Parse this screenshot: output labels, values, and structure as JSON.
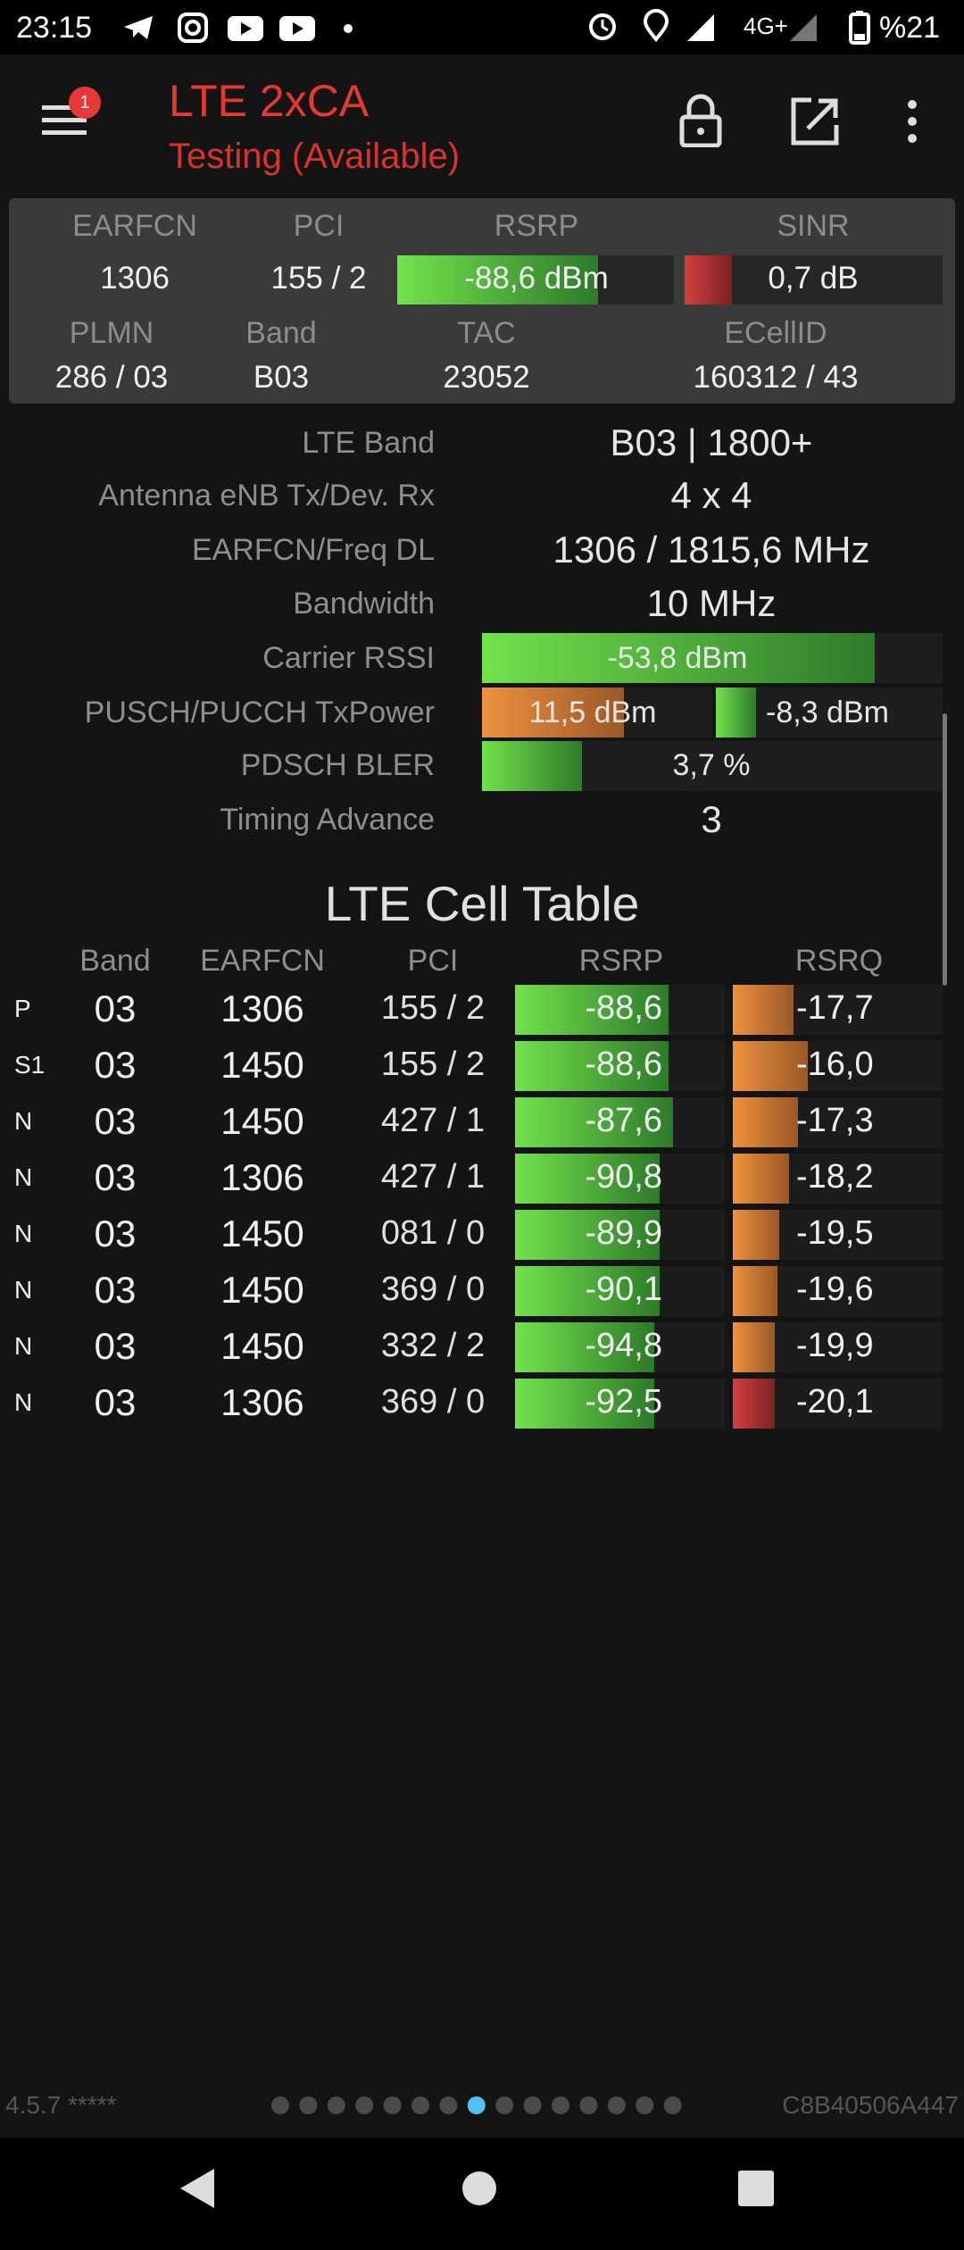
{
  "status_bar": {
    "time": "23:15",
    "network": "4G+",
    "battery": "%21"
  },
  "app_bar": {
    "badge": "1",
    "title": "LTE 2xCA",
    "subtitle": "Testing (Available)"
  },
  "summary": {
    "top_labels": [
      "EARFCN",
      "PCI",
      "RSRP",
      "SINR"
    ],
    "top_values": [
      "1306",
      "155 / 2",
      "-88,6 dBm",
      "0,7 dB"
    ],
    "bottom_labels": [
      "PLMN",
      "Band",
      "TAC",
      "ECellID"
    ],
    "bottom_values": [
      "286 / 03",
      "B03",
      "23052",
      "160312 / 43"
    ]
  },
  "details": [
    {
      "label": "LTE Band",
      "values": [
        "B03 | 1800+"
      ]
    },
    {
      "label": "Antenna eNB Tx/Dev. Rx",
      "values": [
        "4 x 4"
      ]
    },
    {
      "label": "EARFCN/Freq DL",
      "values": [
        "1306 / 1815,6 MHz"
      ]
    },
    {
      "label": "Bandwidth",
      "values": [
        "10 MHz"
      ]
    },
    {
      "label": "Carrier RSSI",
      "values": [
        "-53,8 dBm"
      ]
    },
    {
      "label": "PUSCH/PUCCH TxPower",
      "values": [
        "11,5 dBm",
        "-8,3 dBm"
      ]
    },
    {
      "label": "PDSCH BLER",
      "values": [
        "3,7 %"
      ]
    },
    {
      "label": "Timing Advance",
      "values": [
        "3"
      ]
    }
  ],
  "cell_table": {
    "title": "LTE Cell Table",
    "columns": [
      "Band",
      "EARFCN",
      "PCI",
      "RSRP",
      "RSRQ"
    ],
    "rows": [
      [
        "P",
        "03",
        "1306",
        "155 / 2",
        "-88,6",
        "-17,7"
      ],
      [
        "S1",
        "03",
        "1450",
        "155 / 2",
        "-88,6",
        "-16,0"
      ],
      [
        "N",
        "03",
        "1450",
        "427 / 1",
        "-87,6",
        "-17,3"
      ],
      [
        "N",
        "03",
        "1306",
        "427 / 1",
        "-90,8",
        "-18,2"
      ],
      [
        "N",
        "03",
        "1450",
        "081 / 0",
        "-89,9",
        "-19,5"
      ],
      [
        "N",
        "03",
        "1450",
        "369 / 0",
        "-90,1",
        "-19,6"
      ],
      [
        "N",
        "03",
        "1450",
        "332 / 2",
        "-94,8",
        "-19,9"
      ],
      [
        "N",
        "03",
        "1306",
        "369 / 0",
        "-92,5",
        "-20,1"
      ]
    ]
  },
  "footer": {
    "version": "4.5.7 *****",
    "device_id": "C8B40506A447"
  }
}
